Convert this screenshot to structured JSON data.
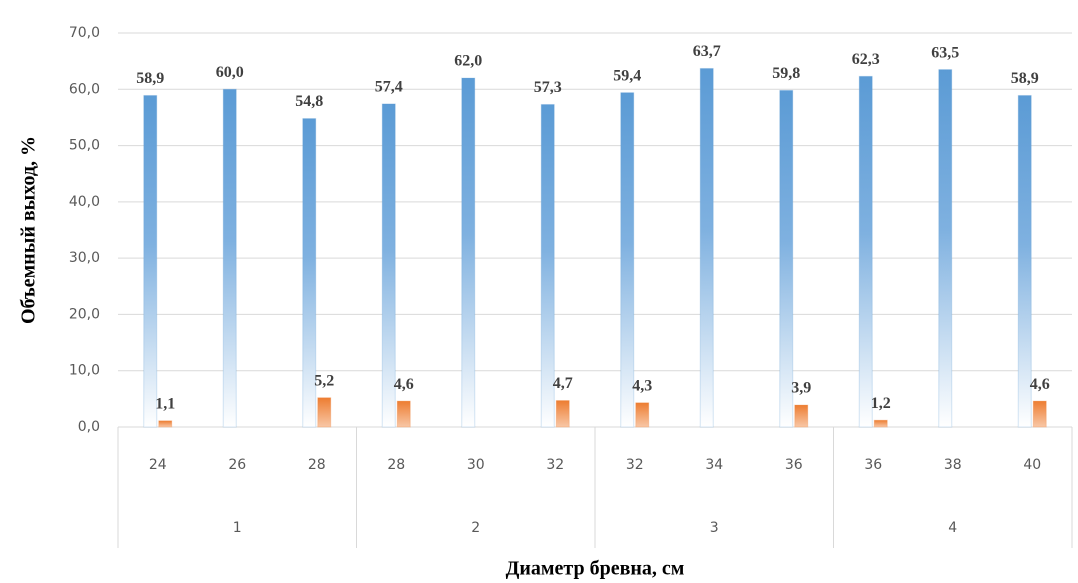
{
  "chart_data": {
    "type": "bar",
    "y_label": "Объемный выход, %",
    "x_label": "Диаметр бревна, см",
    "categories": [
      "24",
      "26",
      "28",
      "28",
      "30",
      "32",
      "32",
      "34",
      "36",
      "36",
      "38",
      "40"
    ],
    "groups": [
      "1",
      "2",
      "3",
      "4"
    ],
    "series": [
      {
        "color": "#5b9bd5",
        "values": [
          58.9,
          60.0,
          54.8,
          57.4,
          62.0,
          57.3,
          59.4,
          63.7,
          59.8,
          62.3,
          63.5,
          58.9
        ],
        "value_labels": [
          "58,9",
          "60,0",
          "54,8",
          "57,4",
          "62,0",
          "57,3",
          "59,4",
          "63,7",
          "59,8",
          "62,3",
          "63,5",
          "58,9"
        ]
      },
      {
        "color": "#ed7d31",
        "values": [
          1.1,
          null,
          5.2,
          4.6,
          null,
          4.7,
          4.3,
          null,
          3.9,
          1.2,
          null,
          4.6
        ],
        "value_labels": [
          "1,1",
          null,
          "5,2",
          "4,6",
          null,
          "4,7",
          "4,3",
          null,
          "3,9",
          "1,2",
          null,
          "4,6"
        ]
      }
    ],
    "ylim": [
      0,
      70
    ],
    "yticks": [
      {
        "value": 0,
        "label": "0,0"
      },
      {
        "value": 10,
        "label": "10,0"
      },
      {
        "value": 20,
        "label": "20,0"
      },
      {
        "value": 30,
        "label": "30,0"
      },
      {
        "value": 40,
        "label": "40,0"
      },
      {
        "value": 50,
        "label": "50,0"
      },
      {
        "value": 60,
        "label": "60,0"
      },
      {
        "value": 70,
        "label": "70,0"
      }
    ],
    "grid": true
  }
}
